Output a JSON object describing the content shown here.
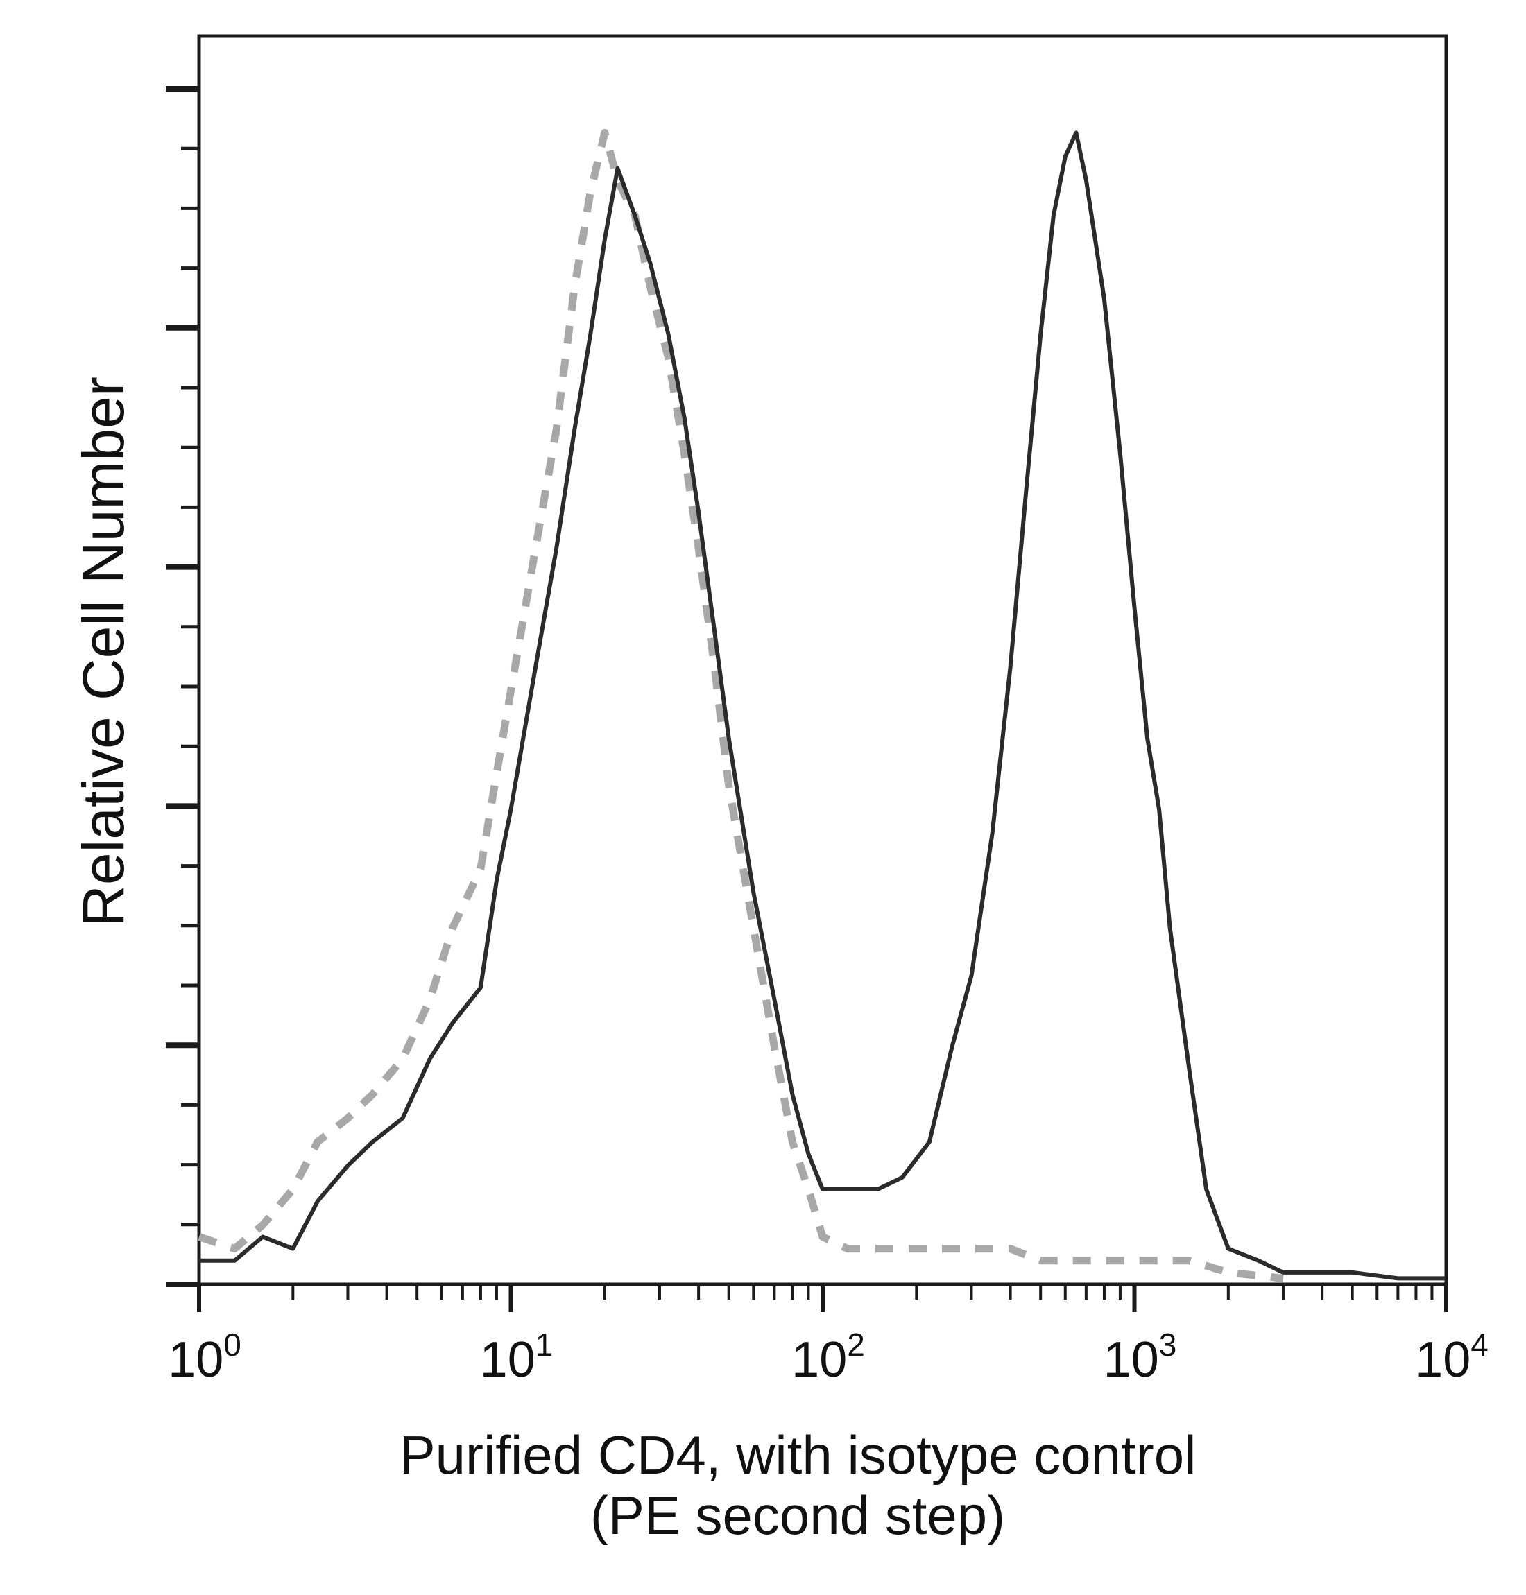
{
  "chart_data": {
    "type": "line",
    "title": "",
    "xlabel_line1": "Purified CD4, with isotype control",
    "xlabel_line2": "(PE second step)",
    "ylabel": "Relative Cell Number",
    "x_scale": "log",
    "xlim": [
      1,
      10000
    ],
    "ylim": [
      0,
      100
    ],
    "grid": false,
    "legend": "none",
    "x_tick_labels": [
      {
        "base": "10",
        "exp": "0",
        "value": 1
      },
      {
        "base": "10",
        "exp": "1",
        "value": 10
      },
      {
        "base": "10",
        "exp": "2",
        "value": 100
      },
      {
        "base": "10",
        "exp": "3",
        "value": 1000
      },
      {
        "base": "10",
        "exp": "4",
        "value": 10000
      }
    ],
    "series": [
      {
        "color": "#2b2b2b",
        "style": "solid",
        "x": [
          1,
          1.3,
          1.6,
          2.0,
          2.4,
          3.0,
          3.6,
          4.5,
          5.5,
          6.5,
          8,
          9,
          10,
          12,
          14,
          16,
          18,
          20,
          22,
          25,
          28,
          32,
          36,
          40,
          45,
          50,
          60,
          70,
          80,
          90,
          100,
          120,
          150,
          180,
          220,
          260,
          300,
          350,
          400,
          450,
          500,
          550,
          600,
          650,
          700,
          800,
          900,
          1000,
          1100,
          1200,
          1300,
          1500,
          1700,
          2000,
          2500,
          3000,
          4000,
          5000,
          7000,
          10000
        ],
        "y": [
          2,
          2,
          4,
          3,
          7,
          10,
          12,
          14,
          19,
          22,
          25,
          34,
          40,
          52,
          62,
          72,
          80,
          88,
          94,
          90,
          86,
          80,
          73,
          65,
          55,
          46,
          33,
          24,
          16,
          11,
          8,
          8,
          8,
          9,
          12,
          20,
          26,
          38,
          52,
          67,
          80,
          90,
          95,
          97,
          93,
          83,
          70,
          57,
          46,
          40,
          30,
          18,
          8,
          3,
          2,
          1,
          1,
          1,
          0.5,
          0.5
        ]
      },
      {
        "color": "#a8a8a8",
        "style": "dashed",
        "x": [
          1,
          1.3,
          1.6,
          2.0,
          2.4,
          3.0,
          3.6,
          4.5,
          5.5,
          6.5,
          8,
          9,
          10,
          12,
          14,
          16,
          18,
          20,
          22,
          25,
          28,
          32,
          36,
          40,
          45,
          50,
          60,
          70,
          80,
          90,
          100,
          120,
          150,
          200,
          300,
          400,
          500,
          700,
          1000,
          1500,
          2000,
          3000
        ],
        "y": [
          4,
          3,
          5,
          8,
          12,
          14,
          16,
          19,
          24,
          30,
          35,
          43,
          50,
          62,
          72,
          84,
          92,
          97,
          93,
          90,
          84,
          78,
          70,
          62,
          52,
          42,
          30,
          20,
          12,
          8,
          4,
          3,
          3,
          3,
          3,
          3,
          2,
          2,
          2,
          2,
          1,
          0.5
        ]
      }
    ]
  }
}
